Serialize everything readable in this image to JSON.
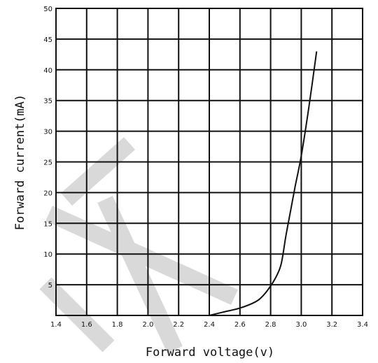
{
  "chart_data": {
    "type": "line",
    "xlabel": "Forward voltage(v)",
    "ylabel": "Forward current(mA)",
    "xlim": [
      1.4,
      3.4
    ],
    "ylim": [
      0,
      50
    ],
    "x_ticks": [
      "1.4",
      "1.6",
      "1.8",
      "2.0",
      "2.2",
      "2.4",
      "2.6",
      "2.8",
      "3.0",
      "3.2",
      "3.4"
    ],
    "y_ticks": [
      "5",
      "10",
      "15",
      "20",
      "25",
      "30",
      "35",
      "40",
      "45",
      "50"
    ],
    "grid": true,
    "series": [
      {
        "x": [
          2.4,
          2.5,
          2.6,
          2.7,
          2.75,
          2.8,
          2.84,
          2.87,
          2.9,
          2.93,
          2.96,
          3.0,
          3.05,
          3.1
        ],
        "y": [
          0,
          0.6,
          1.2,
          2.2,
          3.2,
          4.8,
          6.5,
          8.5,
          13,
          17,
          21,
          26,
          34,
          43
        ]
      }
    ],
    "colors": {
      "line": "#111111",
      "grid": "#111111",
      "watermark": "#d9d9d9"
    }
  }
}
